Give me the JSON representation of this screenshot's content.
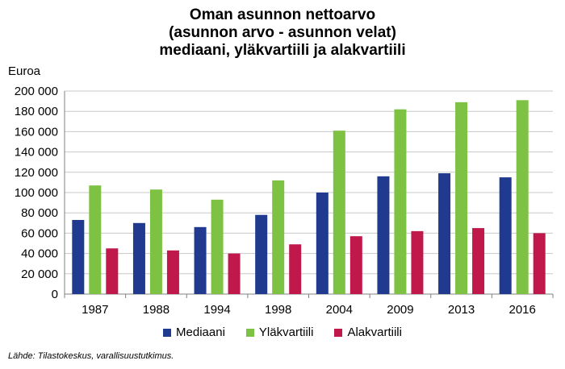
{
  "chart_data": {
    "type": "bar",
    "title_lines": [
      "Oman asunnon nettoarvo",
      "(asunnon arvo - asunnon velat)",
      "mediaani, yläkvartiili ja alakvartiili"
    ],
    "ylabel": "Euroa",
    "xlabel": "",
    "categories": [
      "1987",
      "1988",
      "1994",
      "1998",
      "2004",
      "2009",
      "2013",
      "2016"
    ],
    "series": [
      {
        "name": "Mediaani",
        "color": "#1f3a8f",
        "values": [
          73000,
          70000,
          66000,
          78000,
          100000,
          116000,
          119000,
          115000
        ]
      },
      {
        "name": "Yläkvartiili",
        "color": "#7dc242",
        "values": [
          107000,
          103000,
          93000,
          112000,
          161000,
          182000,
          189000,
          191000
        ]
      },
      {
        "name": "Alakvartiili",
        "color": "#c0184a",
        "values": [
          45000,
          43000,
          40000,
          49000,
          57000,
          62000,
          65000,
          60000
        ]
      }
    ],
    "ylim": [
      0,
      200000
    ],
    "yticks": [
      0,
      20000,
      40000,
      60000,
      80000,
      100000,
      120000,
      140000,
      160000,
      180000,
      200000
    ],
    "ytick_labels": [
      "0",
      "20 000",
      "40 000",
      "60 000",
      "80 000",
      "100 000",
      "120 000",
      "140 000",
      "160 000",
      "180 000",
      "200 000"
    ],
    "grid": true,
    "legend_position": "bottom"
  },
  "source_note": "Lähde: Tilastokeskus, varallisuustutkimus."
}
